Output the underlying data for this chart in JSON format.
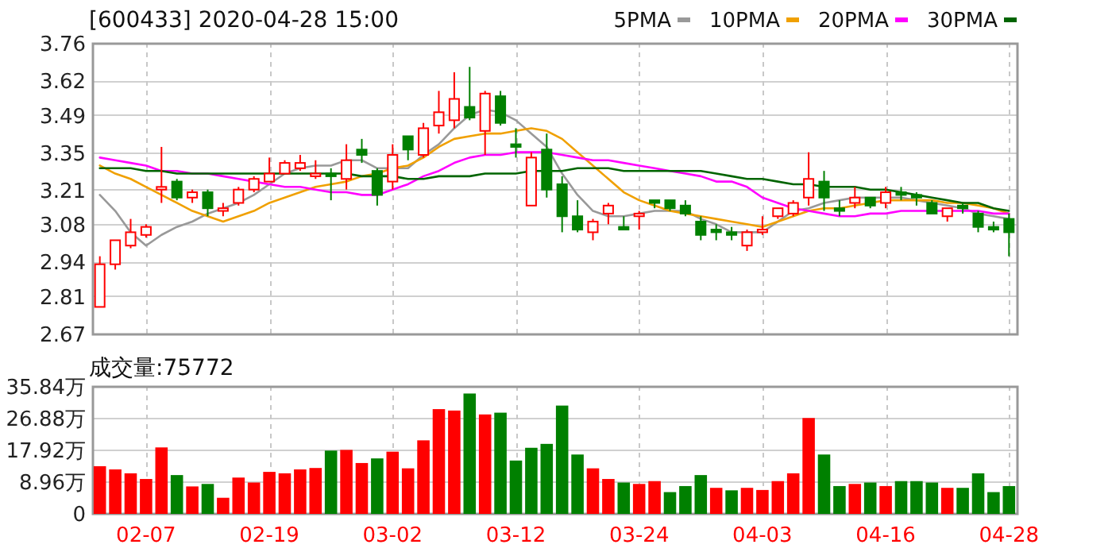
{
  "chart_data": [
    {
      "type": "candlestick",
      "title": "[600433] 2020-04-28 15:00",
      "tick_labels": "y",
      "grid": true,
      "legend": "top right",
      "ylim": [
        2.67,
        3.76
      ],
      "yticks": [
        2.67,
        2.81,
        2.94,
        3.08,
        3.21,
        3.35,
        3.49,
        3.62,
        3.76
      ],
      "categories": [
        null,
        null,
        null,
        null,
        null,
        null,
        null,
        null,
        null,
        null,
        null,
        null,
        null,
        null,
        null,
        null,
        null,
        null,
        null,
        null,
        null,
        null,
        null,
        null,
        null,
        null,
        null,
        null,
        null,
        null,
        null,
        null,
        null,
        null,
        null,
        null,
        null,
        null,
        null,
        null,
        null,
        null,
        null,
        null,
        null,
        null,
        null,
        null,
        null,
        null,
        null,
        null,
        null,
        null,
        null,
        null,
        null,
        null,
        null,
        null
      ],
      "ohlc": [
        [
          2.77,
          2.96,
          2.77,
          2.93
        ],
        [
          2.93,
          3.02,
          2.91,
          3.02
        ],
        [
          3.0,
          3.1,
          2.99,
          3.05
        ],
        [
          3.04,
          3.08,
          3.03,
          3.07
        ],
        [
          3.21,
          3.37,
          3.16,
          3.22
        ],
        [
          3.24,
          3.25,
          3.17,
          3.18
        ],
        [
          3.18,
          3.21,
          3.16,
          3.2
        ],
        [
          3.2,
          3.21,
          3.11,
          3.14
        ],
        [
          3.13,
          3.16,
          3.11,
          3.14
        ],
        [
          3.16,
          3.22,
          3.15,
          3.21
        ],
        [
          3.21,
          3.26,
          3.2,
          3.25
        ],
        [
          3.24,
          3.33,
          3.24,
          3.27
        ],
        [
          3.27,
          3.32,
          3.27,
          3.31
        ],
        [
          3.29,
          3.34,
          3.28,
          3.31
        ],
        [
          3.26,
          3.32,
          3.25,
          3.27
        ],
        [
          3.27,
          3.29,
          3.17,
          3.26
        ],
        [
          3.25,
          3.38,
          3.21,
          3.32
        ],
        [
          3.36,
          3.4,
          3.31,
          3.34
        ],
        [
          3.28,
          3.29,
          3.15,
          3.19
        ],
        [
          3.24,
          3.38,
          3.21,
          3.34
        ],
        [
          3.41,
          3.41,
          3.32,
          3.36
        ],
        [
          3.34,
          3.46,
          3.33,
          3.44
        ],
        [
          3.45,
          3.58,
          3.42,
          3.5
        ],
        [
          3.47,
          3.65,
          3.44,
          3.55
        ],
        [
          3.52,
          3.67,
          3.47,
          3.48
        ],
        [
          3.43,
          3.58,
          3.34,
          3.57
        ],
        [
          3.56,
          3.58,
          3.45,
          3.46
        ],
        [
          3.38,
          3.44,
          3.33,
          3.37
        ],
        [
          3.15,
          3.35,
          3.15,
          3.33
        ],
        [
          3.36,
          3.42,
          3.18,
          3.21
        ],
        [
          3.23,
          3.26,
          3.05,
          3.11
        ],
        [
          3.11,
          3.17,
          3.05,
          3.06
        ],
        [
          3.05,
          3.1,
          3.02,
          3.09
        ],
        [
          3.12,
          3.16,
          3.08,
          3.15
        ],
        [
          3.07,
          3.11,
          3.06,
          3.06
        ],
        [
          3.11,
          3.13,
          3.06,
          3.12
        ],
        [
          3.17,
          3.17,
          3.14,
          3.16
        ],
        [
          3.17,
          3.17,
          3.13,
          3.14
        ],
        [
          3.15,
          3.17,
          3.11,
          3.12
        ],
        [
          3.09,
          3.11,
          3.02,
          3.04
        ],
        [
          3.06,
          3.08,
          3.02,
          3.05
        ],
        [
          3.05,
          3.07,
          3.02,
          3.04
        ],
        [
          3.0,
          3.06,
          2.98,
          3.05
        ],
        [
          3.05,
          3.11,
          3.04,
          3.06
        ],
        [
          3.11,
          3.14,
          3.1,
          3.14
        ],
        [
          3.12,
          3.17,
          3.11,
          3.16
        ],
        [
          3.18,
          3.35,
          3.15,
          3.25
        ],
        [
          3.24,
          3.28,
          3.13,
          3.18
        ],
        [
          3.14,
          3.17,
          3.11,
          3.13
        ],
        [
          3.16,
          3.22,
          3.14,
          3.18
        ],
        [
          3.18,
          3.18,
          3.14,
          3.15
        ],
        [
          3.16,
          3.22,
          3.14,
          3.2
        ],
        [
          3.2,
          3.22,
          3.17,
          3.19
        ],
        [
          3.19,
          3.2,
          3.15,
          3.18
        ],
        [
          3.16,
          3.17,
          3.12,
          3.12
        ],
        [
          3.11,
          3.14,
          3.09,
          3.14
        ],
        [
          3.15,
          3.16,
          3.12,
          3.14
        ],
        [
          3.12,
          3.13,
          3.05,
          3.07
        ],
        [
          3.07,
          3.09,
          3.05,
          3.06
        ],
        [
          3.1,
          3.12,
          2.96,
          3.05
        ]
      ],
      "colors": [
        "#ff0000",
        "#ff0000",
        "#ff0000",
        "#ff0000",
        "#ff0000",
        "#008000",
        "#ff0000",
        "#008000",
        "#ff0000",
        "#ff0000",
        "#ff0000",
        "#ff0000",
        "#ff0000",
        "#ff0000",
        "#ff0000",
        "#008000",
        "#ff0000",
        "#008000",
        "#008000",
        "#ff0000",
        "#008000",
        "#ff0000",
        "#ff0000",
        "#ff0000",
        "#008000",
        "#ff0000",
        "#008000",
        "#008000",
        "#ff0000",
        "#008000",
        "#008000",
        "#008000",
        "#ff0000",
        "#ff0000",
        "#008000",
        "#ff0000",
        "#008000",
        "#008000",
        "#008000",
        "#008000",
        "#008000",
        "#008000",
        "#ff0000",
        "#ff0000",
        "#ff0000",
        "#ff0000",
        "#ff0000",
        "#008000",
        "#008000",
        "#ff0000",
        "#008000",
        "#ff0000",
        "#008000",
        "#008000",
        "#008000",
        "#ff0000",
        "#008000",
        "#008000",
        "#008000",
        "#008000"
      ],
      "series": [
        {
          "name": "5PMA",
          "type": "line",
          "color": "#999999",
          "values": [
            3.19,
            3.13,
            3.05,
            3.0,
            3.04,
            3.07,
            3.09,
            3.12,
            3.14,
            3.16,
            3.19,
            3.23,
            3.27,
            3.29,
            3.3,
            3.3,
            3.32,
            3.32,
            3.29,
            3.29,
            3.29,
            3.34,
            3.38,
            3.44,
            3.49,
            3.51,
            3.5,
            3.47,
            3.42,
            3.37,
            3.27,
            3.19,
            3.13,
            3.11,
            3.11,
            3.12,
            3.13,
            3.13,
            3.13,
            3.1,
            3.08,
            3.05,
            3.05,
            3.05,
            3.09,
            3.13,
            3.14,
            3.16,
            3.17,
            3.18,
            3.18,
            3.18,
            3.18,
            3.17,
            3.16,
            3.15,
            3.14,
            3.12,
            3.11,
            3.1
          ]
        },
        {
          "name": "10PMA",
          "type": "line",
          "color": "#f0a000",
          "values": [
            3.3,
            3.27,
            3.25,
            3.22,
            3.19,
            3.16,
            3.13,
            3.11,
            3.09,
            3.11,
            3.13,
            3.16,
            3.18,
            3.2,
            3.22,
            3.23,
            3.24,
            3.26,
            3.27,
            3.29,
            3.3,
            3.33,
            3.37,
            3.4,
            3.41,
            3.42,
            3.42,
            3.43,
            3.44,
            3.43,
            3.4,
            3.35,
            3.3,
            3.25,
            3.2,
            3.17,
            3.15,
            3.13,
            3.12,
            3.11,
            3.1,
            3.09,
            3.08,
            3.07,
            3.09,
            3.11,
            3.13,
            3.14,
            3.14,
            3.15,
            3.16,
            3.17,
            3.17,
            3.17,
            3.17,
            3.16,
            3.16,
            3.15,
            3.14,
            3.12
          ]
        },
        {
          "name": "20PMA",
          "type": "line",
          "color": "#ff00ff",
          "values": [
            3.33,
            3.32,
            3.31,
            3.3,
            3.28,
            3.28,
            3.27,
            3.27,
            3.26,
            3.25,
            3.24,
            3.23,
            3.22,
            3.22,
            3.21,
            3.2,
            3.2,
            3.19,
            3.19,
            3.21,
            3.23,
            3.26,
            3.28,
            3.31,
            3.33,
            3.34,
            3.34,
            3.35,
            3.35,
            3.35,
            3.34,
            3.33,
            3.32,
            3.32,
            3.31,
            3.3,
            3.29,
            3.28,
            3.27,
            3.26,
            3.24,
            3.24,
            3.22,
            3.18,
            3.16,
            3.14,
            3.13,
            3.12,
            3.11,
            3.11,
            3.12,
            3.12,
            3.13,
            3.13,
            3.13,
            3.13,
            3.13,
            3.13,
            3.12,
            3.12
          ]
        },
        {
          "name": "30PMA",
          "type": "line",
          "color": "#006400",
          "values": [
            3.29,
            3.29,
            3.29,
            3.28,
            3.28,
            3.27,
            3.27,
            3.27,
            3.27,
            3.27,
            3.27,
            3.27,
            3.27,
            3.27,
            3.27,
            3.27,
            3.27,
            3.26,
            3.26,
            3.26,
            3.25,
            3.25,
            3.26,
            3.26,
            3.26,
            3.27,
            3.27,
            3.27,
            3.28,
            3.28,
            3.28,
            3.29,
            3.29,
            3.29,
            3.28,
            3.28,
            3.28,
            3.28,
            3.28,
            3.28,
            3.27,
            3.26,
            3.25,
            3.25,
            3.24,
            3.23,
            3.23,
            3.22,
            3.22,
            3.22,
            3.21,
            3.21,
            3.2,
            3.19,
            3.18,
            3.17,
            3.16,
            3.16,
            3.14,
            3.13
          ]
        }
      ]
    },
    {
      "type": "bar",
      "title": "成交量:75772",
      "grid": true,
      "ylim": [
        0,
        35.84
      ],
      "yticks": [
        0,
        {
          "value": 8.96,
          "label": "8.96万"
        },
        {
          "value": 17.92,
          "label": "17.92万"
        },
        {
          "value": 26.88,
          "label": "26.88万"
        },
        {
          "value": 35.84,
          "label": "35.84万"
        }
      ],
      "categories": [
        null,
        null,
        null,
        "02-07",
        null,
        null,
        null,
        null,
        null,
        null,
        null,
        "02-19",
        null,
        null,
        null,
        null,
        null,
        null,
        null,
        "03-02",
        null,
        null,
        null,
        null,
        null,
        null,
        null,
        "03-12",
        null,
        null,
        null,
        null,
        null,
        null,
        null,
        "03-24",
        null,
        null,
        null,
        null,
        null,
        null,
        null,
        "04-03",
        null,
        null,
        null,
        null,
        null,
        null,
        null,
        "04-16",
        null,
        null,
        null,
        null,
        null,
        null,
        null,
        "04-28"
      ],
      "values": [
        13.0,
        12.1,
        11.0,
        9.4,
        18.3,
        10.5,
        7.3,
        8.0,
        4.1,
        9.8,
        8.4,
        11.4,
        11.0,
        12.1,
        12.5,
        17.4,
        17.6,
        13.9,
        15.2,
        17.1,
        12.4,
        20.3,
        29.1,
        28.7,
        33.5,
        27.6,
        28.1,
        14.6,
        18.2,
        19.3,
        30.1,
        16.3,
        12.4,
        9.4,
        8.4,
        8.0,
        8.8,
        5.7,
        7.4,
        10.5,
        6.9,
        6.2,
        6.9,
        6.3,
        8.8,
        11.0,
        26.6,
        16.3,
        7.4,
        8.0,
        8.4,
        7.4,
        8.8,
        8.8,
        8.4,
        6.9,
        6.9,
        11.0,
        5.7,
        7.4
      ],
      "colors": [
        "#ff0000",
        "#ff0000",
        "#ff0000",
        "#ff0000",
        "#ff0000",
        "#008000",
        "#ff0000",
        "#008000",
        "#ff0000",
        "#ff0000",
        "#ff0000",
        "#ff0000",
        "#ff0000",
        "#ff0000",
        "#ff0000",
        "#008000",
        "#ff0000",
        "#ff0000",
        "#008000",
        "#ff0000",
        "#ff0000",
        "#ff0000",
        "#ff0000",
        "#ff0000",
        "#008000",
        "#ff0000",
        "#008000",
        "#008000",
        "#008000",
        "#008000",
        "#008000",
        "#008000",
        "#ff0000",
        "#ff0000",
        "#008000",
        "#ff0000",
        "#ff0000",
        "#008000",
        "#008000",
        "#008000",
        "#ff0000",
        "#008000",
        "#ff0000",
        "#ff0000",
        "#ff0000",
        "#ff0000",
        "#ff0000",
        "#008000",
        "#008000",
        "#ff0000",
        "#008000",
        "#ff0000",
        "#008000",
        "#008000",
        "#008000",
        "#ff0000",
        "#008000",
        "#008000",
        "#008000",
        "#008000"
      ]
    }
  ]
}
